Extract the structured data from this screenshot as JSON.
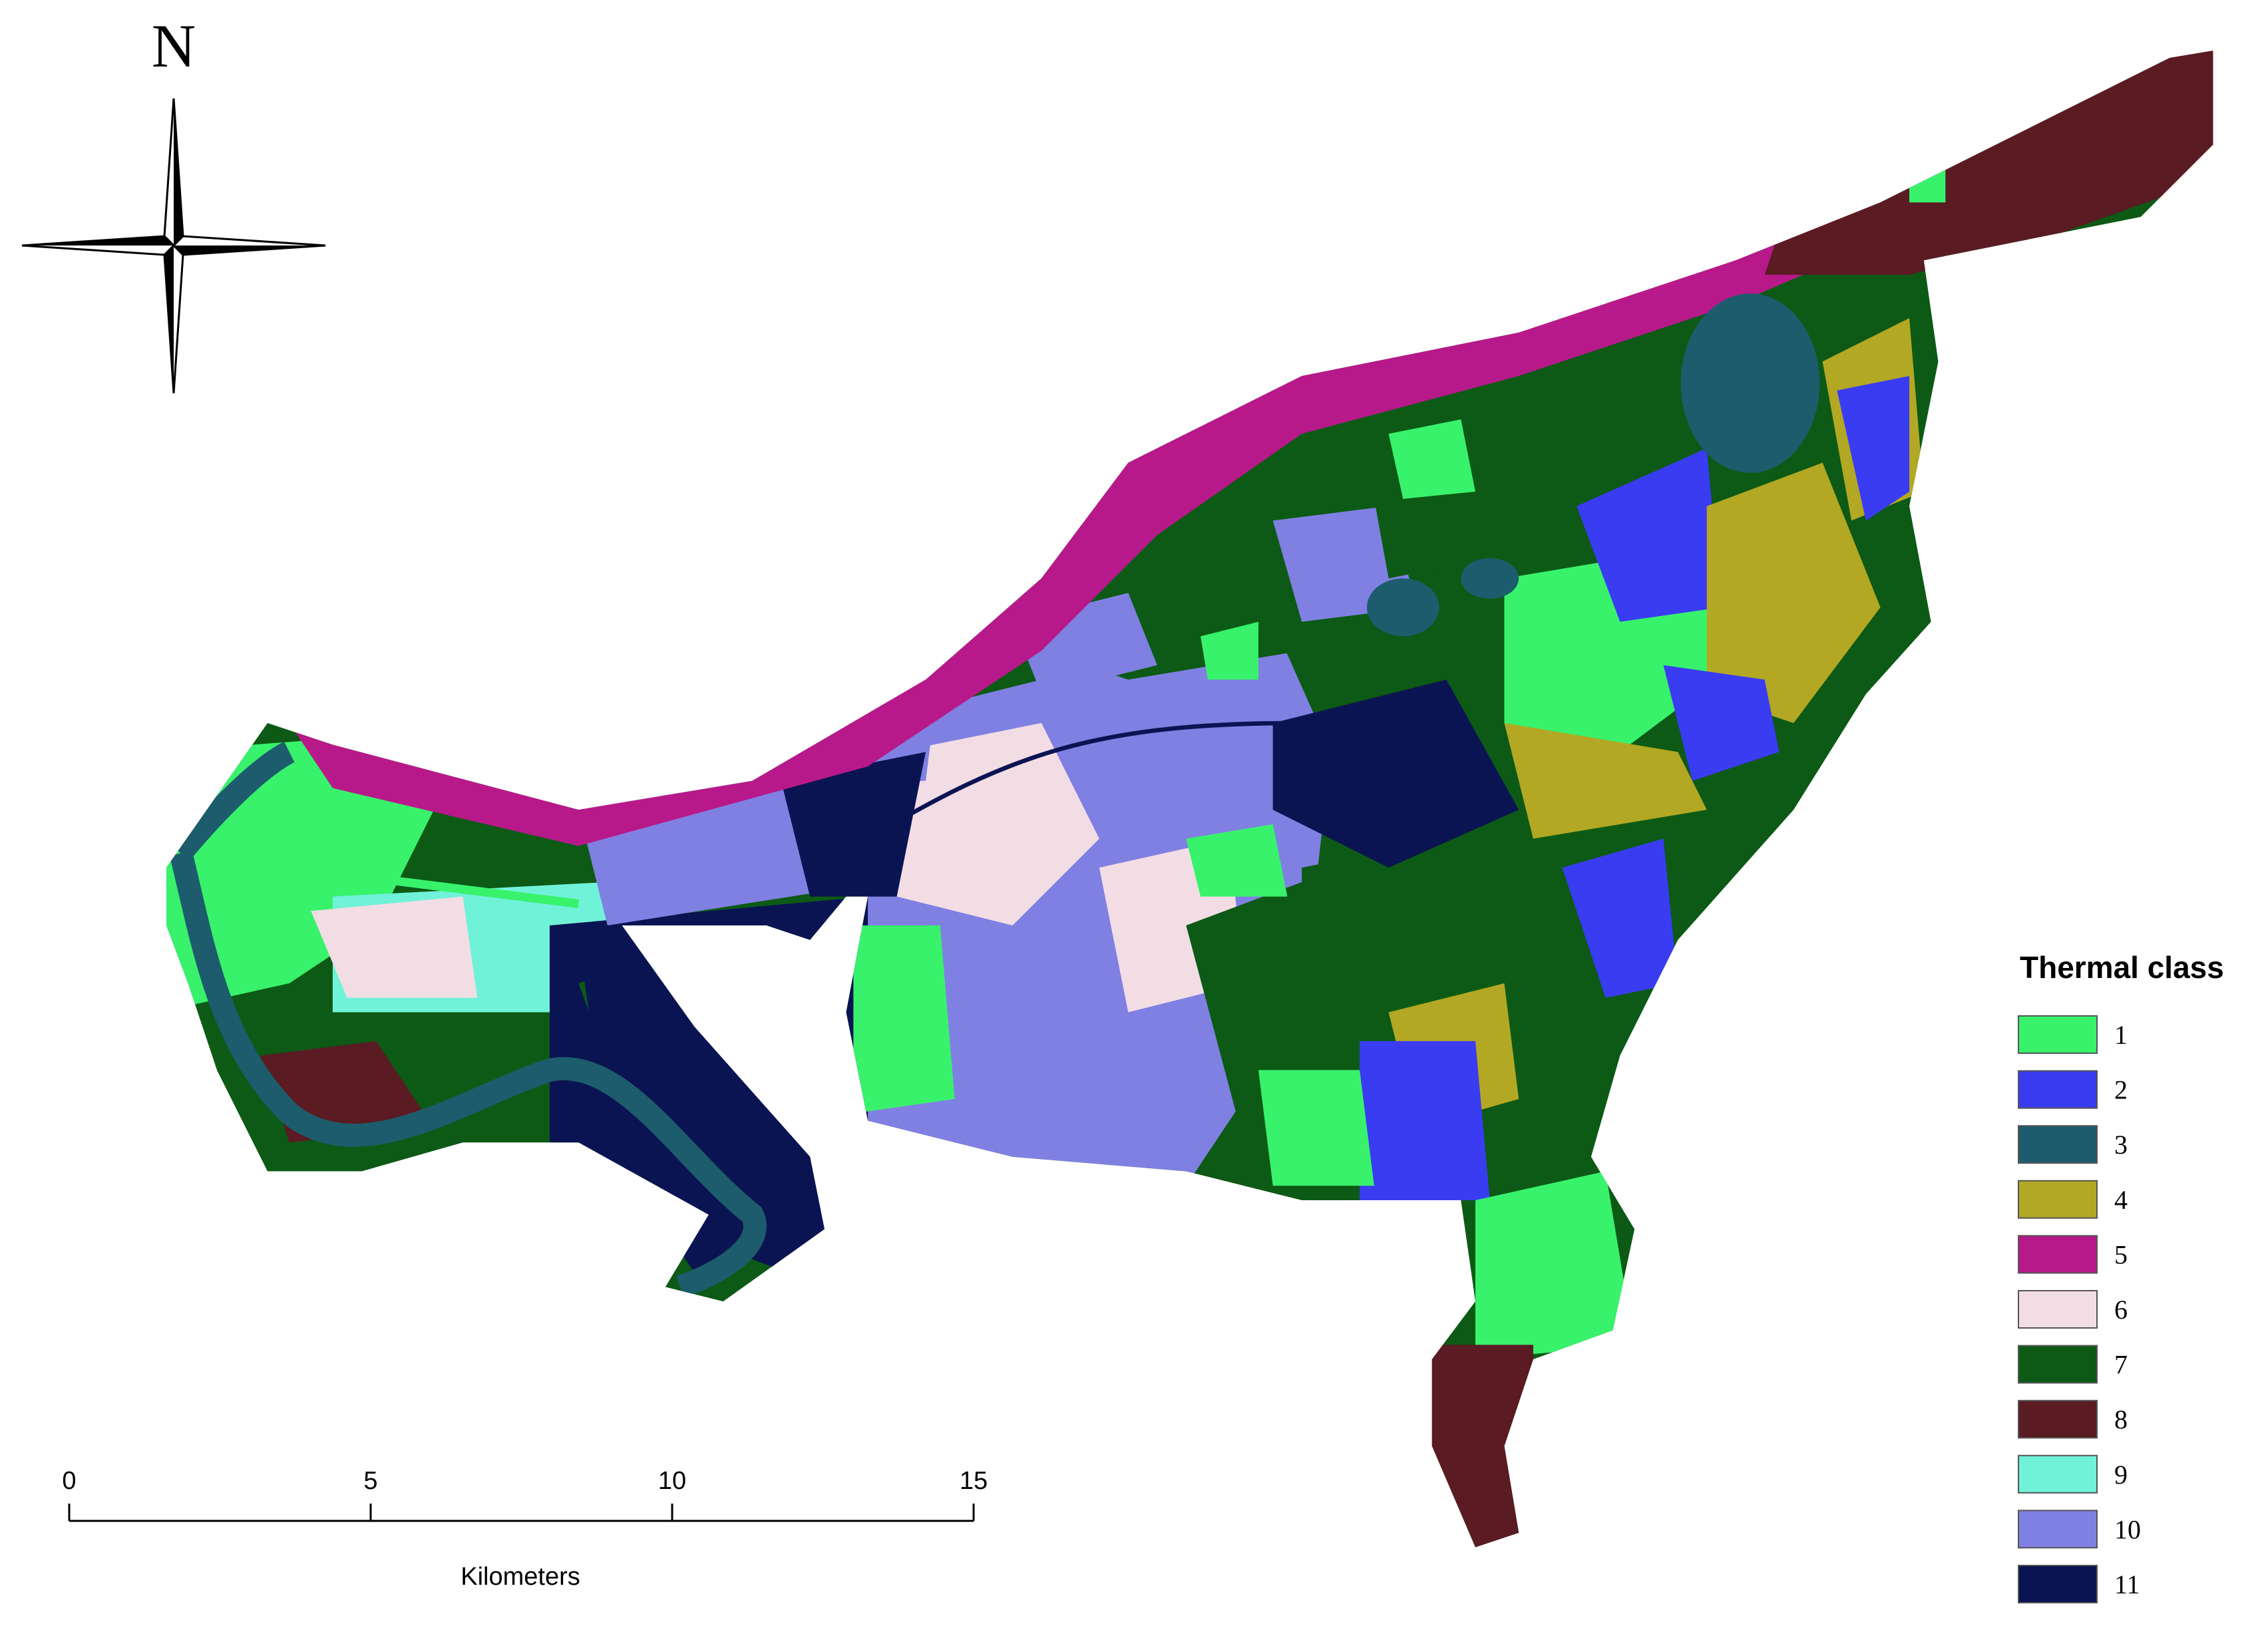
{
  "north_arrow": {
    "label": "N"
  },
  "scale_bar": {
    "ticks": [
      0,
      5,
      10,
      15
    ],
    "unit": "Kilometers"
  },
  "legend": {
    "title": "Thermal class",
    "classes": [
      {
        "label": "1",
        "color": "#38f26c"
      },
      {
        "label": "2",
        "color": "#3a3cf2"
      },
      {
        "label": "3",
        "color": "#1d5c6c"
      },
      {
        "label": "4",
        "color": "#b3a823"
      },
      {
        "label": "5",
        "color": "#b8198a"
      },
      {
        "label": "6",
        "color": "#f3dde5"
      },
      {
        "label": "7",
        "color": "#0c5a16"
      },
      {
        "label": "8",
        "color": "#5a1b22"
      },
      {
        "label": "9",
        "color": "#70f2d8"
      },
      {
        "label": "10",
        "color": "#8080e2"
      },
      {
        "label": "11",
        "color": "#0b1452"
      }
    ]
  }
}
